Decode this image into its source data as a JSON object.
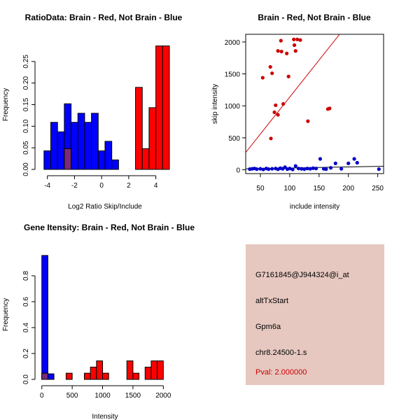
{
  "chart_data": [
    {
      "type": "bar",
      "title": "RatioData: Brain - Red, Not Brain - Blue",
      "xlabel": "Log2 Ratio Skip/Include",
      "ylabel": "Frequency",
      "xlim": [
        -4.5,
        5
      ],
      "ylim": [
        0,
        0.3
      ],
      "xticks": [
        -4,
        -2,
        0,
        2,
        4
      ],
      "yticks": [
        0.0,
        0.05,
        0.1,
        0.15,
        0.2,
        0.25
      ],
      "ytick_labels": [
        "0.00",
        "0.05",
        "0.10",
        "0.15",
        "0.20",
        "0.25"
      ],
      "series": [
        {
          "name": "Not Brain",
          "color": "#0000ff",
          "bins": [
            {
              "x0": -4.25,
              "x1": -3.75,
              "value": 0.043
            },
            {
              "x0": -3.75,
              "x1": -3.25,
              "value": 0.109
            },
            {
              "x0": -3.25,
              "x1": -2.75,
              "value": 0.087
            },
            {
              "x0": -2.75,
              "x1": -2.25,
              "value": 0.152
            },
            {
              "x0": -2.25,
              "x1": -1.75,
              "value": 0.109
            },
            {
              "x0": -1.75,
              "x1": -1.25,
              "value": 0.13
            },
            {
              "x0": -1.25,
              "x1": -0.75,
              "value": 0.109
            },
            {
              "x0": -0.75,
              "x1": -0.25,
              "value": 0.13
            },
            {
              "x0": -0.25,
              "x1": 0.25,
              "value": 0.043
            },
            {
              "x0": 0.25,
              "x1": 0.75,
              "value": 0.065
            },
            {
              "x0": 0.75,
              "x1": 1.25,
              "value": 0.022
            }
          ]
        },
        {
          "name": "Brain",
          "color": "#ff0000",
          "bins": [
            {
              "x0": -2.75,
              "x1": -2.25,
              "value": 0.048
            },
            {
              "x0": 2.5,
              "x1": 3.0,
              "value": 0.19
            },
            {
              "x0": 3.0,
              "x1": 3.5,
              "value": 0.048
            },
            {
              "x0": 3.5,
              "x1": 4.0,
              "value": 0.143
            },
            {
              "x0": 4.0,
              "x1": 4.5,
              "value": 0.286
            },
            {
              "x0": 4.5,
              "x1": 5.0,
              "value": 0.286
            }
          ]
        }
      ]
    },
    {
      "type": "scatter",
      "title": "Brain - Red, Not Brain - Blue",
      "xlabel": "include intensity",
      "ylabel": "skip intensity",
      "xlim": [
        25,
        260
      ],
      "ylim": [
        -60,
        2120
      ],
      "xticks": [
        50,
        100,
        150,
        200,
        250
      ],
      "yticks": [
        0,
        500,
        1000,
        1500,
        2000
      ],
      "series": [
        {
          "name": "Brain",
          "color": "#cc0000",
          "points": [
            [
              85,
              2020
            ],
            [
              107,
              2040
            ],
            [
              113,
              2040
            ],
            [
              118,
              2030
            ],
            [
              80,
              1860
            ],
            [
              86,
              1850
            ],
            [
              95,
              1820
            ],
            [
              108,
              1950
            ],
            [
              110,
              1860
            ],
            [
              67,
              1610
            ],
            [
              70,
              1510
            ],
            [
              54,
              1440
            ],
            [
              98,
              1460
            ],
            [
              76,
              1010
            ],
            [
              89,
              1030
            ],
            [
              74,
              900
            ],
            [
              80,
              860
            ],
            [
              165,
              950
            ],
            [
              168,
              960
            ],
            [
              131,
              760
            ],
            [
              68,
              490
            ]
          ]
        },
        {
          "name": "Not Brain",
          "color": "#0000cc",
          "points": [
            [
              32,
              10
            ],
            [
              36,
              15
            ],
            [
              40,
              20
            ],
            [
              44,
              10
            ],
            [
              50,
              15
            ],
            [
              55,
              5
            ],
            [
              60,
              20
            ],
            [
              64,
              10
            ],
            [
              70,
              15
            ],
            [
              76,
              20
            ],
            [
              80,
              8
            ],
            [
              84,
              25
            ],
            [
              88,
              15
            ],
            [
              92,
              40
            ],
            [
              96,
              10
            ],
            [
              100,
              20
            ],
            [
              105,
              5
            ],
            [
              110,
              60
            ],
            [
              115,
              20
            ],
            [
              120,
              15
            ],
            [
              125,
              10
            ],
            [
              130,
              20
            ],
            [
              135,
              15
            ],
            [
              140,
              25
            ],
            [
              145,
              20
            ],
            [
              152,
              170
            ],
            [
              158,
              15
            ],
            [
              162,
              10
            ],
            [
              170,
              30
            ],
            [
              178,
              100
            ],
            [
              188,
              15
            ],
            [
              200,
              100
            ],
            [
              210,
              170
            ],
            [
              215,
              110
            ],
            [
              252,
              10
            ]
          ]
        }
      ],
      "fit_lines": [
        {
          "color": "#cc0000",
          "x0": 25,
          "y0": 270,
          "x1": 185,
          "y1": 2120
        },
        {
          "color": "#000000",
          "x0": 25,
          "y0": 15,
          "x1": 260,
          "y1": 55
        }
      ]
    },
    {
      "type": "bar",
      "title": "Gene Itensity: Brain - Red, Not Brain - Blue",
      "xlabel": "Intensity",
      "ylabel": "Frequency",
      "xlim": [
        -20,
        2100
      ],
      "ylim": [
        0,
        1.0
      ],
      "xticks": [
        0,
        500,
        1000,
        1500,
        2000
      ],
      "yticks": [
        0.0,
        0.2,
        0.4,
        0.6,
        0.8
      ],
      "ytick_labels": [
        "0.0",
        "0.2",
        "0.4",
        "0.6",
        "0.8"
      ],
      "series": [
        {
          "name": "Not Brain",
          "color": "#0000ff",
          "bins": [
            {
              "x0": 0,
              "x1": 100,
              "value": 0.957
            },
            {
              "x0": 100,
              "x1": 200,
              "value": 0.043
            }
          ]
        },
        {
          "name": "Brain",
          "color": "#ff0000",
          "bins": [
            {
              "x0": 0,
              "x1": 100,
              "value": 0.048
            },
            {
              "x0": 400,
              "x1": 500,
              "value": 0.048
            },
            {
              "x0": 700,
              "x1": 800,
              "value": 0.048
            },
            {
              "x0": 800,
              "x1": 900,
              "value": 0.095
            },
            {
              "x0": 900,
              "x1": 1000,
              "value": 0.143
            },
            {
              "x0": 1000,
              "x1": 1100,
              "value": 0.048
            },
            {
              "x0": 1400,
              "x1": 1500,
              "value": 0.143
            },
            {
              "x0": 1500,
              "x1": 1600,
              "value": 0.048
            },
            {
              "x0": 1700,
              "x1": 1800,
              "value": 0.095
            },
            {
              "x0": 1800,
              "x1": 1900,
              "value": 0.143
            },
            {
              "x0": 1900,
              "x1": 2000,
              "value": 0.143
            }
          ]
        }
      ]
    }
  ],
  "info": {
    "probe_id": "G7161845@J944324@i_at",
    "event_type": "altTxStart",
    "gene": "Gpm6a",
    "location": "chr8.24500-1.s",
    "pval": "Pval: 2.000000"
  }
}
